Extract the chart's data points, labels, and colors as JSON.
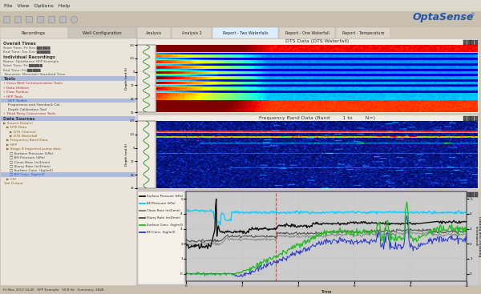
{
  "bg_color": "#d4c9b8",
  "optasense_text": "OptaSense",
  "dts_title": "DTS Data (DTS Waterfall)",
  "das_title": "Frequency Band Data (Band        1 to        N=)",
  "time_label": "Time",
  "tab_labels": [
    "Analysis",
    "Analysis 2",
    "Report - Two Waterfalls",
    "Report - One Waterfall",
    "Report - Temperature"
  ],
  "pump_legend": [
    {
      "label": "Surface Pressure (kPa)",
      "color": "#111111"
    },
    {
      "label": "BH Pressure (kPa)",
      "color": "#00ccff"
    },
    {
      "label": "Clean Rate (m3/min)",
      "color": "#777777"
    },
    {
      "label": "Slurry Rate (m3/min)",
      "color": "#444444"
    },
    {
      "label": "Surface Conc. (kg/m3)",
      "color": "#22bb22"
    },
    {
      "label": "BH Conc. (kg/m3)",
      "color": "#2233cc"
    }
  ]
}
